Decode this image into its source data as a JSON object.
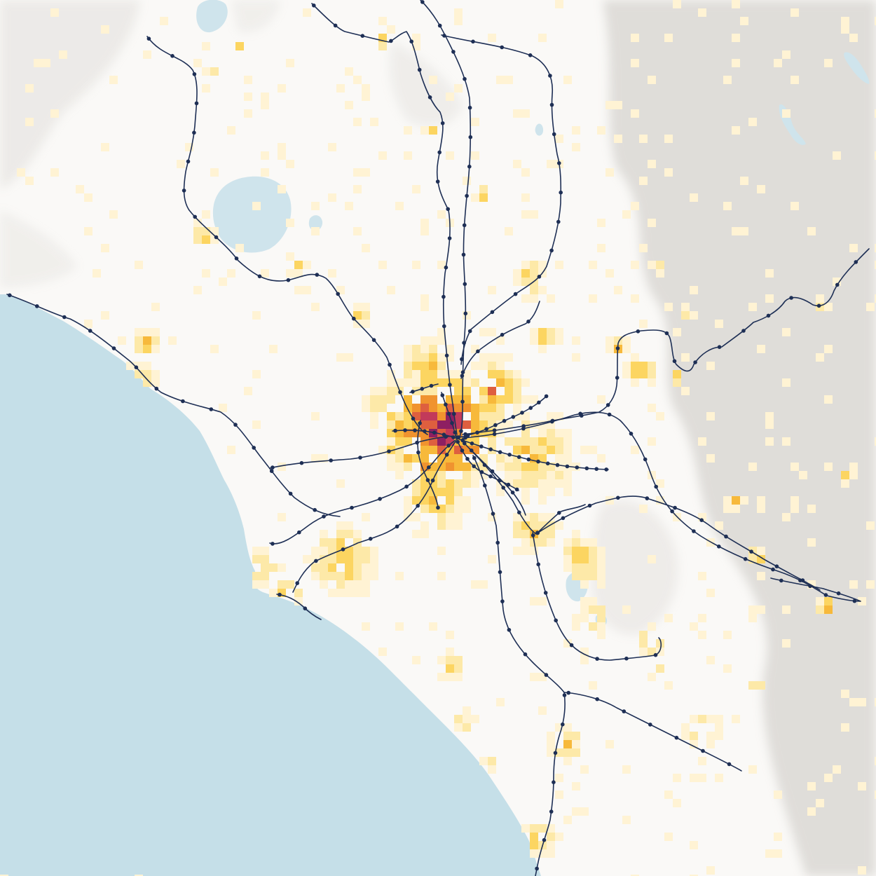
{
  "map": {
    "colors": {
      "land": "#faf9f7",
      "hillshade": "#c9c6c1",
      "sea": "#c5dfe8",
      "lake": "#cfe4ec",
      "rail": "#1e2f55",
      "station": "#1e2f55"
    },
    "density_scale": [
      {
        "level": 1,
        "color": "#fff3d4"
      },
      {
        "level": 2,
        "color": "#fde9a8"
      },
      {
        "level": 3,
        "color": "#fcd561"
      },
      {
        "level": 4,
        "color": "#f7b93b"
      },
      {
        "level": 5,
        "color": "#f0932f"
      },
      {
        "level": 6,
        "color": "#de5f3f"
      },
      {
        "level": 7,
        "color": "#c23a5a"
      },
      {
        "level": 8,
        "color": "#8e1f62"
      }
    ],
    "layers": [
      "hillshade-relief",
      "sea",
      "lakes",
      "population-density-grid",
      "rail-lines",
      "rail-stations"
    ]
  }
}
